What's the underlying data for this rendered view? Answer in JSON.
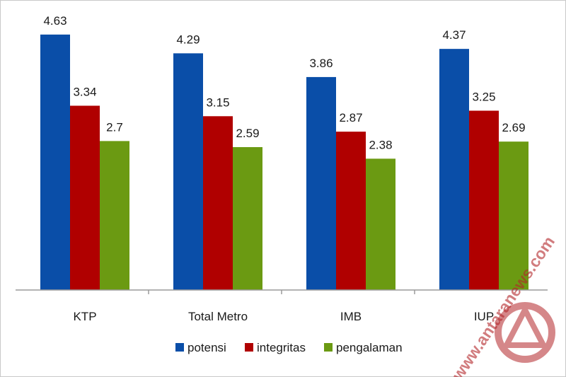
{
  "chart_data": {
    "type": "bar",
    "categories": [
      "KTP",
      "Total Metro",
      "IMB",
      "IUP"
    ],
    "series": [
      {
        "name": "potensi",
        "values": [
          4.63,
          4.29,
          3.86,
          4.37
        ],
        "color": "#0a4ea8"
      },
      {
        "name": "integritas",
        "values": [
          3.34,
          3.15,
          2.87,
          3.25
        ],
        "color": "#b00000"
      },
      {
        "name": "pengalaman",
        "values": [
          2.7,
          2.59,
          2.38,
          2.69
        ],
        "color": "#6b9a12"
      }
    ],
    "data_labels": [
      [
        "4.63",
        "3.34",
        "2.7"
      ],
      [
        "4.29",
        "3.15",
        "2.59"
      ],
      [
        "3.86",
        "2.87",
        "2.38"
      ],
      [
        "4.37",
        "3.25",
        "2.69"
      ]
    ],
    "ylim": [
      0,
      5
    ],
    "grid": false,
    "legend_position": "bottom",
    "title": "",
    "xlabel": "",
    "ylabel": ""
  },
  "watermark": {
    "text": "www.antaranews.com",
    "icon": "antara-logo-icon"
  }
}
